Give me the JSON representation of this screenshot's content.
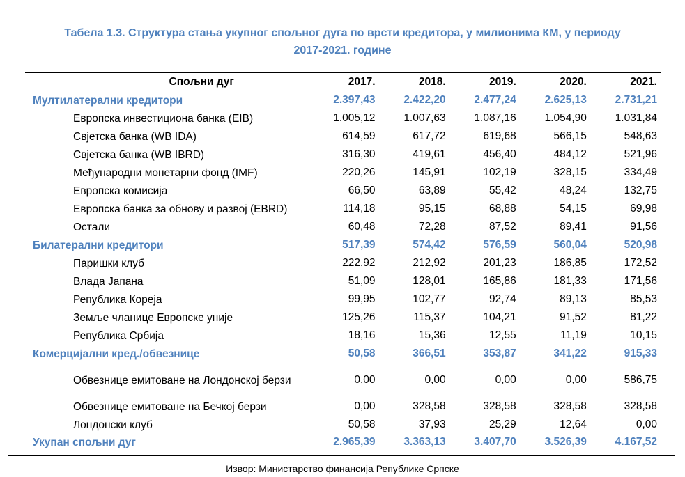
{
  "title_line1": "Табела 1.3. Структура стања укупног спољног дуга по врсти кредитора, у милионима КМ, у периоду",
  "title_line2": "2017-2021. године",
  "header": {
    "label": "Спољни дуг",
    "years": [
      "2017.",
      "2018.",
      "2019.",
      "2020.",
      "2021."
    ]
  },
  "rows": [
    {
      "label": "Мултилатерални кредитори",
      "group": true,
      "values": [
        "2.397,43",
        "2.422,20",
        "2.477,24",
        "2.625,13",
        "2.731,21"
      ]
    },
    {
      "label": "Европска инвестициона банка (EIB)",
      "values": [
        "1.005,12",
        "1.007,63",
        "1.087,16",
        "1.054,90",
        "1.031,84"
      ]
    },
    {
      "label": "Свјетска банка (WB IDA)",
      "values": [
        "614,59",
        "617,72",
        "619,68",
        "566,15",
        "548,63"
      ]
    },
    {
      "label": "Свјетска банка (WB IBRD)",
      "values": [
        "316,30",
        "419,61",
        "456,40",
        "484,12",
        "521,96"
      ]
    },
    {
      "label": "Међународни монетарни фонд (IMF)",
      "values": [
        "220,26",
        "145,91",
        "102,19",
        "328,15",
        "334,49"
      ]
    },
    {
      "label": "Европска комисија",
      "values": [
        "66,50",
        "63,89",
        "55,42",
        "48,24",
        "132,75"
      ]
    },
    {
      "label": "Европска банка за обнову и развој (EBRD)",
      "values": [
        "114,18",
        "95,15",
        "68,88",
        "54,15",
        "69,98"
      ]
    },
    {
      "label": "Остали",
      "values": [
        "60,48",
        "72,28",
        "87,52",
        "89,41",
        "91,56"
      ]
    },
    {
      "label": "Билатерални кредитори",
      "group": true,
      "values": [
        "517,39",
        "574,42",
        "576,59",
        "560,04",
        "520,98"
      ]
    },
    {
      "label": "Паришки клуб",
      "values": [
        "222,92",
        "212,92",
        "201,23",
        "186,85",
        "172,52"
      ]
    },
    {
      "label": "Влада Јапана",
      "values": [
        "51,09",
        "128,01",
        "165,86",
        "181,33",
        "171,56"
      ]
    },
    {
      "label": "Република Кореја",
      "values": [
        "99,95",
        "102,77",
        "92,74",
        "89,13",
        "85,53"
      ]
    },
    {
      "label": "Земље чланице Европске уније",
      "values": [
        "125,26",
        "115,37",
        "104,21",
        "91,52",
        "81,22"
      ]
    },
    {
      "label": "Република Србија",
      "values": [
        "18,16",
        "15,36",
        "12,55",
        "11,19",
        "10,15"
      ]
    },
    {
      "label": "Комерцијални кред./обвезнице",
      "group": true,
      "values": [
        "50,58",
        "366,51",
        "353,87",
        "341,22",
        "915,33"
      ]
    },
    {
      "label": "Обвезнице емитоване на Лондонској берзи",
      "tall": true,
      "values": [
        "0,00",
        "0,00",
        "0,00",
        "0,00",
        "586,75"
      ]
    },
    {
      "label": "Обвезнице емитоване на Бечкој берзи",
      "values": [
        "0,00",
        "328,58",
        "328,58",
        "328,58",
        "328,58"
      ]
    },
    {
      "label": "Лондонски клуб",
      "values": [
        "50,58",
        "37,93",
        "25,29",
        "12,64",
        "0,00"
      ]
    },
    {
      "label": "Укупан спољни дуг",
      "group": true,
      "total": true,
      "values": [
        "2.965,39",
        "3.363,13",
        "3.407,70",
        "3.526,39",
        "4.167,52"
      ]
    }
  ],
  "source": "Извор: Министарство финансија Републике Српске",
  "colors": {
    "accent_blue": "#4f81bd",
    "text": "#000000",
    "background": "#ffffff"
  }
}
